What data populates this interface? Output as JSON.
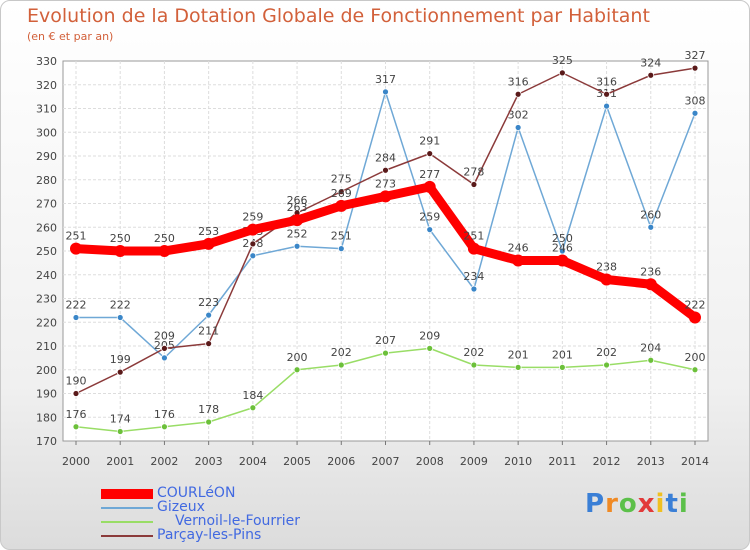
{
  "chart_data": {
    "type": "line",
    "title": "Evolution de la Dotation Globale de Fonctionnement par Habitant",
    "subtitle": "(en € et par an)",
    "x": [
      "2000",
      "2001",
      "2002",
      "2003",
      "2004",
      "2005",
      "2006",
      "2007",
      "2008",
      "2009",
      "2010",
      "2011",
      "2012",
      "2013",
      "2014"
    ],
    "ylim": [
      170,
      330
    ],
    "yticks": [
      170,
      180,
      190,
      200,
      210,
      220,
      230,
      240,
      250,
      260,
      270,
      280,
      290,
      300,
      310,
      320,
      330
    ],
    "grid": true,
    "legend_position": "bottom-left",
    "series": [
      {
        "name": "COURLéON",
        "color": "#ff0000",
        "emphasis": true,
        "values": [
          251,
          250,
          250,
          253,
          259,
          263,
          269,
          273,
          277,
          251,
          246,
          246,
          238,
          236,
          222
        ]
      },
      {
        "name": "Gizeux",
        "color": "#6fa8d6",
        "marker": "#3a86c8",
        "values": [
          222,
          222,
          205,
          223,
          248,
          252,
          251,
          317,
          259,
          234,
          302,
          250,
          311,
          260,
          308
        ]
      },
      {
        "name": "Vernoil-le-Fourrier",
        "color": "#99dd66",
        "marker": "#6cc03a",
        "values": [
          176,
          174,
          176,
          178,
          184,
          200,
          202,
          207,
          209,
          202,
          201,
          201,
          202,
          204,
          200
        ]
      },
      {
        "name": "Parçay-les-Pins",
        "color": "#8b3a3a",
        "marker": "#5a1a1a",
        "values": [
          190,
          199,
          209,
          211,
          253,
          266,
          275,
          284,
          291,
          278,
          316,
          325,
          316,
          324,
          327
        ]
      }
    ]
  },
  "legend": {
    "items": [
      "COURLéON",
      "Gizeux",
      "Vernoil-le-Fourrier",
      "Parçay-les-Pins"
    ]
  },
  "logo": {
    "letters": [
      "P",
      "r",
      "o",
      "x",
      "i",
      "t",
      "i"
    ],
    "colors": [
      "#3a7fd6",
      "#f08a24",
      "#5cc04a",
      "#e23a3a",
      "#f0c020",
      "#3a7fd6",
      "#5cc04a"
    ]
  }
}
